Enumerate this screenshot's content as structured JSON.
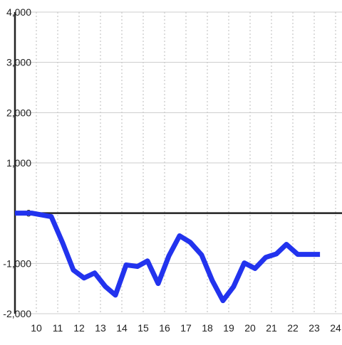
{
  "chart_data": {
    "type": "line",
    "color": "#2233ee",
    "grid": true,
    "x": [
      9,
      9.8,
      10.7,
      11.23,
      11.73,
      12.23,
      12.73,
      13.23,
      13.7,
      14.2,
      14.73,
      15.2,
      15.7,
      16.2,
      16.7,
      17.2,
      17.73,
      18.23,
      18.73,
      19.23,
      19.73,
      20.23,
      20.73,
      21.23,
      21.7,
      22.23,
      22.73,
      23.27
    ],
    "values": [
      0,
      0,
      -70,
      -590,
      -1130,
      -1290,
      -1190,
      -1460,
      -1630,
      -1030,
      -1060,
      -950,
      -1400,
      -850,
      -450,
      -580,
      -830,
      -1340,
      -1740,
      -1460,
      -990,
      -1100,
      -880,
      -810,
      -620,
      -820,
      -820,
      -820
    ],
    "xlim": [
      9,
      24.3
    ],
    "ylim": [
      -2000,
      4000
    ],
    "xticks": [
      10,
      11,
      12,
      13,
      14,
      15,
      16,
      17,
      18,
      19,
      20,
      21,
      22,
      23,
      24
    ],
    "yticks": [
      {
        "value": -2000,
        "label": "-2,000"
      },
      {
        "value": -1000,
        "label": "-1,000"
      },
      0,
      {
        "value": 1000,
        "label": "1,000"
      },
      {
        "value": 2000,
        "label": "2,000"
      },
      {
        "value": 3000,
        "label": "3,000"
      },
      {
        "value": 4000,
        "label": "4,000"
      }
    ]
  }
}
